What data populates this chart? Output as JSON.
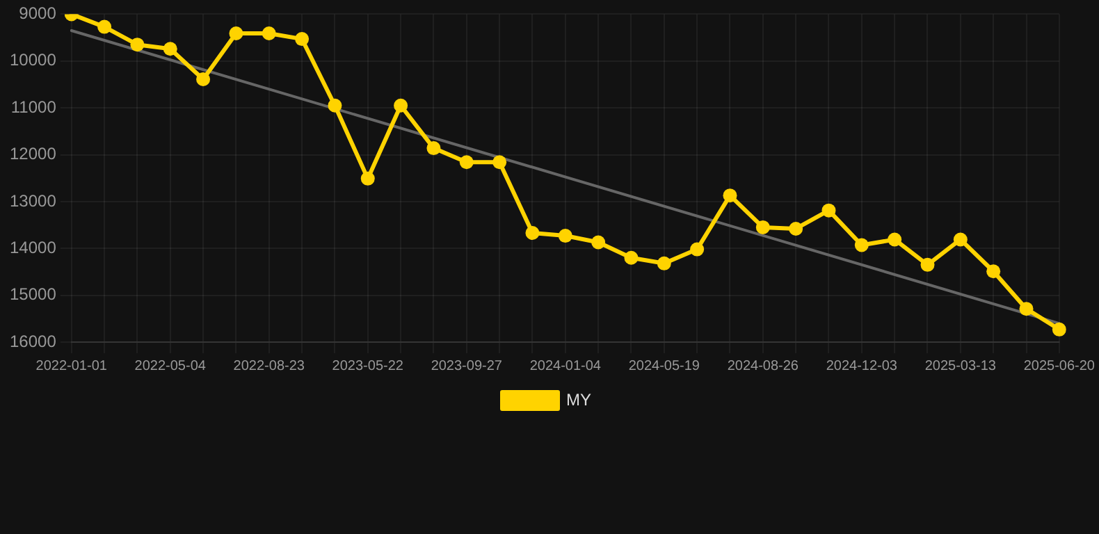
{
  "chart_data": {
    "type": "line",
    "categories": [
      "2022-01-01",
      null,
      null,
      "2022-05-04",
      null,
      null,
      "2022-08-23",
      null,
      null,
      "2023-05-22",
      null,
      null,
      "2023-09-27",
      null,
      null,
      "2024-01-04",
      null,
      null,
      "2024-05-19",
      null,
      null,
      "2024-08-26",
      null,
      null,
      "2024-12-03",
      null,
      null,
      "2025-03-13",
      null,
      null,
      "2025-06-20"
    ],
    "series": [
      {
        "name": "MY",
        "color": "#ffd300",
        "values": [
          9000,
          9270,
          9650,
          9740,
          10390,
          9410,
          9410,
          9530,
          10950,
          12510,
          10950,
          11860,
          12160,
          12160,
          13670,
          13730,
          13870,
          14200,
          14320,
          14020,
          12870,
          13550,
          13580,
          13190,
          13930,
          13810,
          14350,
          13810,
          14490,
          15290,
          15730
        ]
      },
      {
        "type": "line",
        "color": "#666666",
        "values": [
          9350,
          null,
          null,
          null,
          null,
          null,
          null,
          null,
          null,
          null,
          null,
          null,
          null,
          null,
          null,
          null,
          null,
          null,
          null,
          null,
          null,
          null,
          null,
          null,
          null,
          null,
          null,
          null,
          null,
          null,
          15600
        ],
        "marker": "none"
      }
    ],
    "ylim": [
      16000,
      9000
    ],
    "yticks": [
      9000,
      10000,
      11000,
      12000,
      13000,
      14000,
      15000,
      16000
    ],
    "grid": true,
    "legend": "bottom",
    "marker": "circle",
    "line_style": "solid"
  }
}
